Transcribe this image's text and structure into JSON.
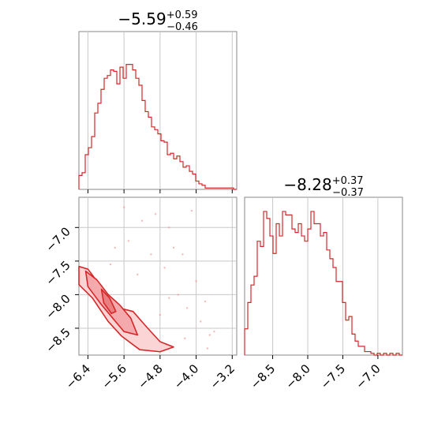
{
  "chart_data": [
    {
      "type": "histogram",
      "panel": "top-left",
      "title": {
        "value": "−5.59",
        "upper": "+0.59",
        "lower": "−0.46"
      },
      "xlim": [
        -6.6,
        -3.1
      ],
      "x_ticks": [
        -6.4,
        -5.6,
        -4.8,
        -4.0,
        -3.2
      ],
      "grid": true,
      "color": "#d62728",
      "bin_edges_start": -6.6,
      "bin_width": 0.07,
      "density": [
        0.1,
        0.12,
        0.25,
        0.3,
        0.38,
        0.55,
        0.62,
        0.72,
        0.8,
        0.82,
        0.86,
        0.85,
        0.76,
        0.88,
        0.8,
        0.9,
        0.9,
        0.86,
        0.8,
        0.75,
        0.64,
        0.56,
        0.52,
        0.45,
        0.43,
        0.4,
        0.35,
        0.34,
        0.25,
        0.26,
        0.22,
        0.24,
        0.2,
        0.16,
        0.17,
        0.13,
        0.11,
        0.06,
        0.04,
        0.03,
        0.01,
        0.01,
        0.01,
        0.01,
        0.01,
        0.01,
        0.01,
        0.01,
        0.01,
        0.0
      ]
    },
    {
      "type": "histogram",
      "panel": "bottom-right",
      "title": {
        "value": "−8.28",
        "upper": "+0.37",
        "lower": "−0.37"
      },
      "xlim": [
        -8.9,
        -6.65
      ],
      "x_ticks": [
        -8.5,
        -8.0,
        -7.5,
        -7.0
      ],
      "x_tick_labels": [
        "−8.5",
        "−8.0",
        "−7.5",
        "−7.0"
      ],
      "grid": true,
      "color": "#d62728",
      "bin_edges_start": -8.9,
      "bin_width": 0.045,
      "density": [
        0.15,
        0.3,
        0.4,
        0.45,
        0.65,
        0.62,
        0.82,
        0.78,
        0.68,
        0.58,
        0.75,
        0.68,
        0.82,
        0.8,
        0.8,
        0.72,
        0.7,
        0.75,
        0.68,
        0.65,
        0.72,
        0.82,
        0.75,
        0.75,
        0.68,
        0.7,
        0.6,
        0.55,
        0.5,
        0.42,
        0.42,
        0.3,
        0.2,
        0.22,
        0.12,
        0.08,
        0.05,
        0.05,
        0.02,
        0.02,
        0.01,
        0.0,
        0.01,
        0.0,
        0.01,
        0.0,
        0.01,
        0.0,
        0.01,
        0.0
      ]
    },
    {
      "type": "contour",
      "panel": "bottom-left",
      "xlim": [
        -6.6,
        -3.1
      ],
      "ylim": [
        -8.9,
        -6.55
      ],
      "x_ticks": [
        -6.4,
        -5.6,
        -4.8,
        -4.0,
        -3.2
      ],
      "x_tick_labels": [
        "−6.4",
        "−5.6",
        "−4.8",
        "−4.0",
        "−3.2"
      ],
      "y_ticks": [
        -7.0,
        -7.5,
        -8.0,
        -8.5
      ],
      "y_tick_labels": [
        "−7.0",
        "−7.5",
        "−8.0",
        "−8.5"
      ],
      "grid": true,
      "color": "#d62728",
      "fill_color": "#f4b6b8",
      "contour_levels": [
        [
          [
            -6.6,
            -7.58
          ],
          [
            -6.4,
            -7.62
          ],
          [
            -6.2,
            -7.8
          ],
          [
            -5.95,
            -8.1
          ],
          [
            -5.7,
            -8.2
          ],
          [
            -5.4,
            -8.25
          ],
          [
            -5.1,
            -8.48
          ],
          [
            -4.8,
            -8.7
          ],
          [
            -4.5,
            -8.78
          ],
          [
            -4.8,
            -8.85
          ],
          [
            -5.25,
            -8.82
          ],
          [
            -5.65,
            -8.62
          ],
          [
            -5.95,
            -8.4
          ],
          [
            -6.3,
            -8.05
          ],
          [
            -6.6,
            -7.85
          ]
        ],
        [
          [
            -6.45,
            -7.65
          ],
          [
            -6.2,
            -7.78
          ],
          [
            -5.95,
            -8.0
          ],
          [
            -5.7,
            -8.15
          ],
          [
            -5.45,
            -8.35
          ],
          [
            -5.3,
            -8.6
          ],
          [
            -5.6,
            -8.55
          ],
          [
            -5.85,
            -8.35
          ],
          [
            -6.1,
            -8.15
          ],
          [
            -6.4,
            -7.88
          ]
        ],
        [
          [
            -6.1,
            -7.92
          ],
          [
            -5.92,
            -8.05
          ],
          [
            -5.78,
            -8.25
          ],
          [
            -5.88,
            -8.28
          ],
          [
            -6.05,
            -8.12
          ]
        ]
      ],
      "scatter": [
        [
          -5.2,
          -6.9
        ],
        [
          -4.6,
          -7.0
        ],
        [
          -5.5,
          -7.2
        ],
        [
          -4.3,
          -7.4
        ],
        [
          -4.0,
          -7.8
        ],
        [
          -3.8,
          -8.1
        ],
        [
          -4.2,
          -8.2
        ],
        [
          -3.9,
          -8.4
        ],
        [
          -3.7,
          -8.6
        ],
        [
          -4.5,
          -7.3
        ],
        [
          -4.7,
          -7.6
        ],
        [
          -5.0,
          -7.4
        ],
        [
          -5.8,
          -7.3
        ],
        [
          -4.9,
          -6.8
        ],
        [
          -4.1,
          -6.75
        ],
        [
          -4.4,
          -8.0
        ],
        [
          -3.6,
          -8.55
        ],
        [
          -4.6,
          -8.05
        ],
        [
          -5.3,
          -7.7
        ],
        [
          -4.8,
          -8.3
        ],
        [
          -3.75,
          -8.8
        ],
        [
          -5.9,
          -7.55
        ],
        [
          -4.25,
          -8.65
        ],
        [
          -5.6,
          -6.7
        ]
      ]
    }
  ]
}
